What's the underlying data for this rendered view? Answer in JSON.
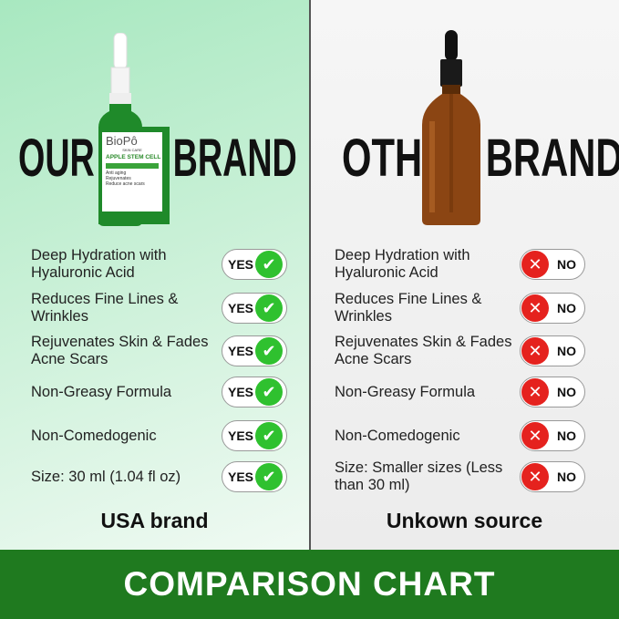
{
  "left": {
    "heading": "OUR BRAND",
    "subtitle": "USA brand",
    "badge": "YES",
    "bottle": {
      "brand": "BioPô",
      "tagline": "SKIN CARE",
      "product": "APPLE STEM CELL",
      "claims": [
        "Anti aging",
        "Rejuvenates",
        "Reduce acne scars"
      ]
    },
    "features": [
      "Deep Hydration with Hyaluronic Acid",
      "Reduces Fine Lines & Wrinkles",
      "Rejuvenates Skin & Fades Acne Scars",
      "Non-Greasy Formula",
      "Non-Comedogenic",
      "Size: 30 ml (1.04 fl oz)"
    ]
  },
  "right": {
    "heading": "OTHER BRAND",
    "subtitle": "Unkown source",
    "badge": "NO",
    "features": [
      "Deep Hydration with Hyaluronic Acid",
      "Reduces Fine Lines & Wrinkles",
      "Rejuvenates Skin & Fades Acne Scars",
      "Non-Greasy Formula",
      "Non-Comedogenic",
      "Size: Smaller sizes (Less than 30 ml)"
    ]
  },
  "banner": "COMPARISON CHART",
  "colors": {
    "yes": "#2fc12f",
    "no": "#e5221e",
    "banner": "#1f7a1f"
  },
  "icons": {
    "yes": "check-circle-icon",
    "no": "x-circle-icon"
  }
}
